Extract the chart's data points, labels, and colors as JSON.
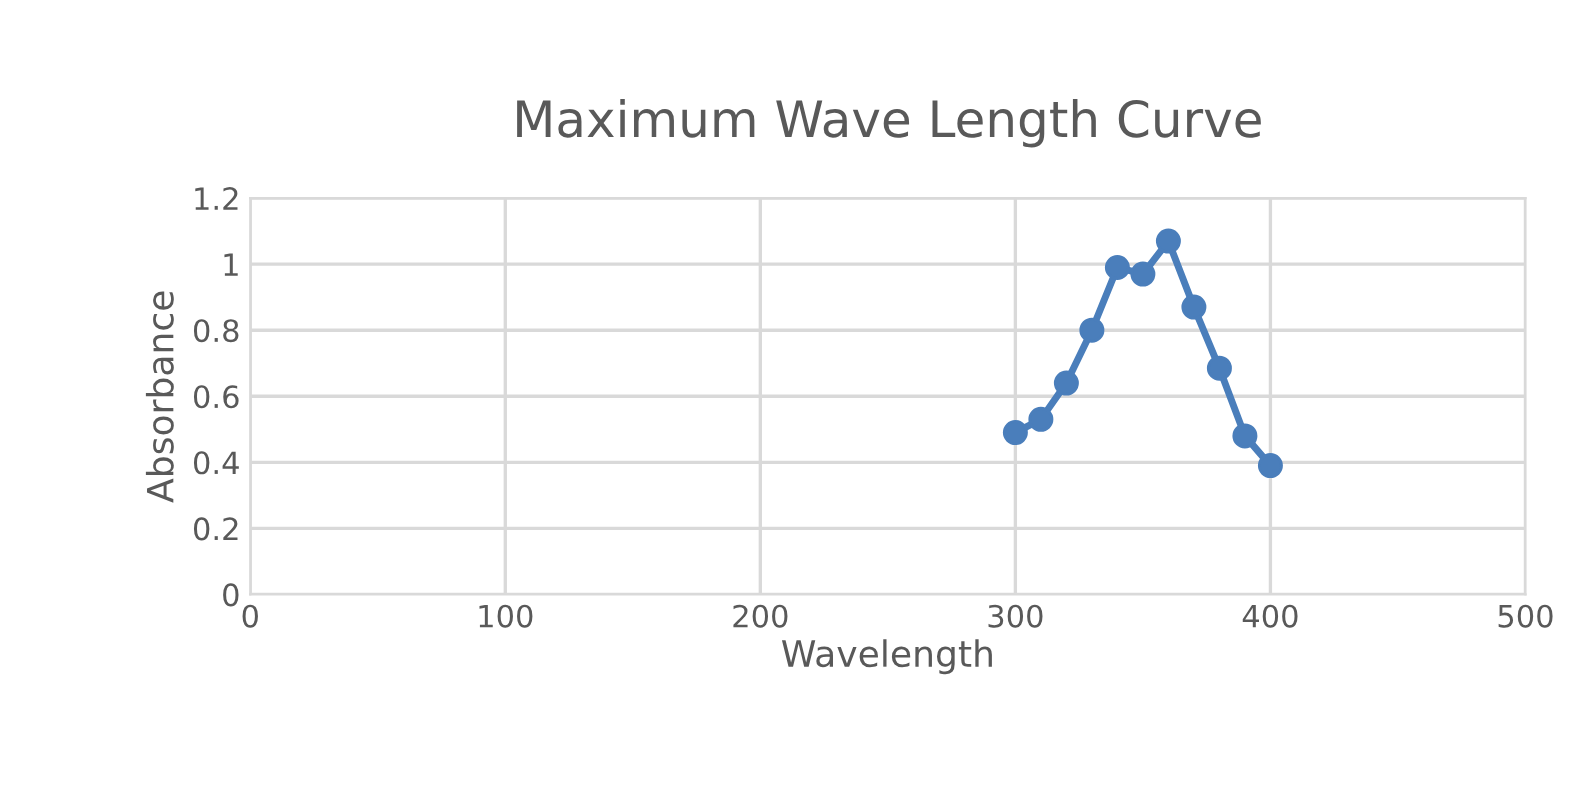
{
  "chart_data": {
    "type": "line",
    "title": "Maximum Wave Length Curve",
    "xlabel": "Wavelength",
    "ylabel": "Absorbance",
    "x": [
      300,
      310,
      320,
      330,
      340,
      350,
      360,
      370,
      380,
      390,
      400
    ],
    "series": [
      {
        "color": "#4a7ebb",
        "values": [
          0.49,
          0.53,
          0.64,
          0.8,
          0.99,
          0.97,
          1.07,
          0.87,
          0.685,
          0.48,
          0.39
        ]
      }
    ],
    "xlim": [
      0,
      500
    ],
    "xticks": [
      0,
      100,
      200,
      300,
      400,
      500
    ],
    "ylim": [
      0,
      1.2
    ],
    "yticks": [
      0,
      0.2,
      0.4,
      0.6,
      0.8,
      1,
      1.2
    ],
    "grid": true,
    "marker": "circle",
    "line_style": "solid",
    "legend": false
  }
}
